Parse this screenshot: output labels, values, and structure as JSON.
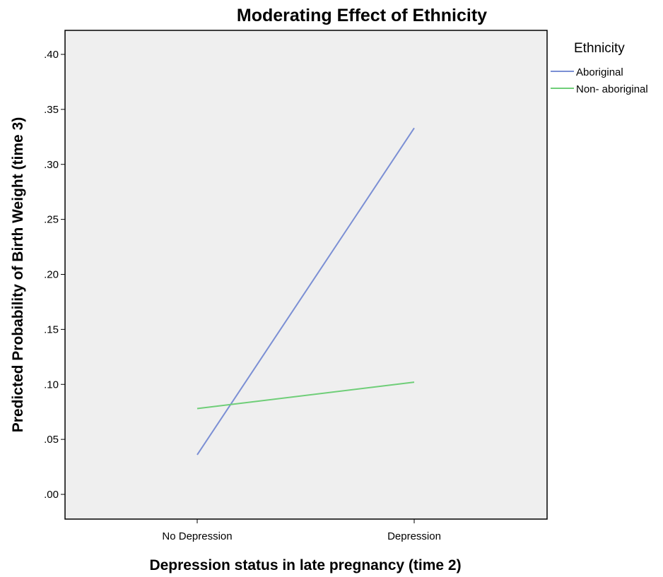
{
  "chart_data": {
    "type": "line",
    "title": "Moderating Effect of Ethnicity",
    "xlabel": "Depression status in late pregnancy (time 2)",
    "ylabel": "Predicted Probability of Birth Weight (time 3)",
    "categories": [
      "No Depression",
      "Depression"
    ],
    "ylim": [
      0,
      0.42
    ],
    "yticks": [
      0,
      0.05,
      0.1,
      0.15,
      0.2,
      0.25,
      0.3,
      0.35,
      0.4
    ],
    "ytick_labels": [
      ".00",
      ".05",
      ".10",
      ".15",
      ".20",
      ".25",
      ".30",
      ".35",
      ".40"
    ],
    "grid": false,
    "legend": {
      "title": "Ethnicity",
      "position": "outside-top-right"
    },
    "series": [
      {
        "name": "Aboriginal",
        "values": [
          0.036,
          0.333
        ],
        "color": "#7b8fd4"
      },
      {
        "name": "Non- aboriginal",
        "values": [
          0.078,
          0.102
        ],
        "color": "#6fce78"
      }
    ],
    "plot_background": "#efefef"
  }
}
